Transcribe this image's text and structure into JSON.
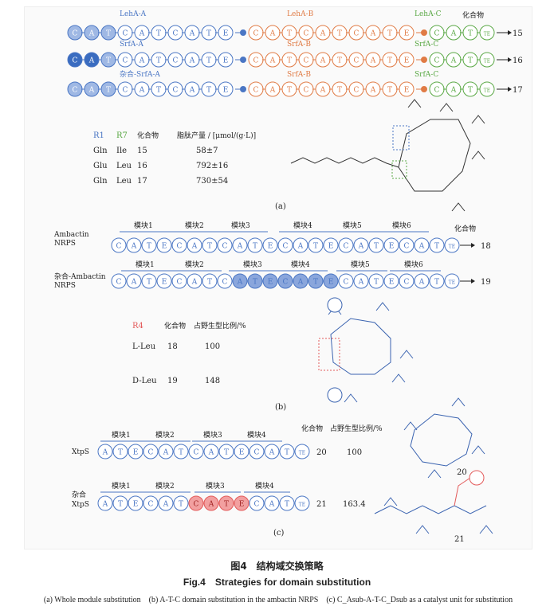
{
  "panelA": {
    "labels": {
      "lehA_A": "LehA-A",
      "lehA_B": "LehA-B",
      "lehA_C": "LehA-C",
      "srfA_A": "SrfA-A",
      "srfA_B": "SrfA-B",
      "srfA_C": "SrfA-C",
      "hyb_A": "杂合-SrfA-A",
      "hyb_B": "SrfA-B",
      "hyb_C": "SrfA-C"
    },
    "compound_header": "化合物",
    "compounds": [
      "15",
      "16",
      "17"
    ],
    "table": {
      "headers": [
        "R1",
        "R7",
        "化合物",
        "脂肽产量 / [μmol/(g·L)]"
      ],
      "rows": [
        [
          "Gln",
          "Ile",
          "15",
          "58±7"
        ],
        [
          "Glu",
          "Leu",
          "16",
          "792±16"
        ],
        [
          "Gln",
          "Leu",
          "17",
          "730±54"
        ]
      ]
    },
    "panel_label": "(a)"
  },
  "panelB": {
    "ambactin_label": "Ambactin\nNRPS",
    "hybrid_label": "杂合-Ambactin\nNRPS",
    "modules": [
      "模块1",
      "模块2",
      "模块3",
      "模块4",
      "模块5",
      "模块6"
    ],
    "compound_header": "化合物",
    "compounds": [
      "18",
      "19"
    ],
    "table": {
      "headers": [
        "R4",
        "化合物",
        "占野生型比例/%"
      ],
      "rows": [
        [
          "L-Leu",
          "18",
          "100"
        ],
        [
          "D-Leu",
          "19",
          "148"
        ]
      ]
    },
    "panel_label": "(b)"
  },
  "panelC": {
    "xtps_label": "XtpS",
    "hybrid_label": "杂合\nXtpS",
    "modules": [
      "模块1",
      "模块2",
      "模块3",
      "模块4"
    ],
    "compound_header": "化合物",
    "ratio_header": "占野生型比例/%",
    "rows": [
      [
        "20",
        "100"
      ],
      [
        "21",
        "163.4"
      ]
    ],
    "structure_labels": [
      "20",
      "21"
    ],
    "panel_label": "(c)"
  },
  "caption": {
    "zh": "图4　结构域交换策略",
    "en": "Fig.4　Strategies for domain substitution",
    "sub": "(a) Whole module substitution　(b) A-T-C domain substitution in the ambactin NRPS　(c) C_Asub-A-T-C_Dsub as a catalyst unit for substitution"
  },
  "colors": {
    "blue": "#4a76c4",
    "orange": "#e07b45",
    "green": "#5aa845",
    "red": "#e35a5a",
    "darkblue": "#3a63b0"
  }
}
